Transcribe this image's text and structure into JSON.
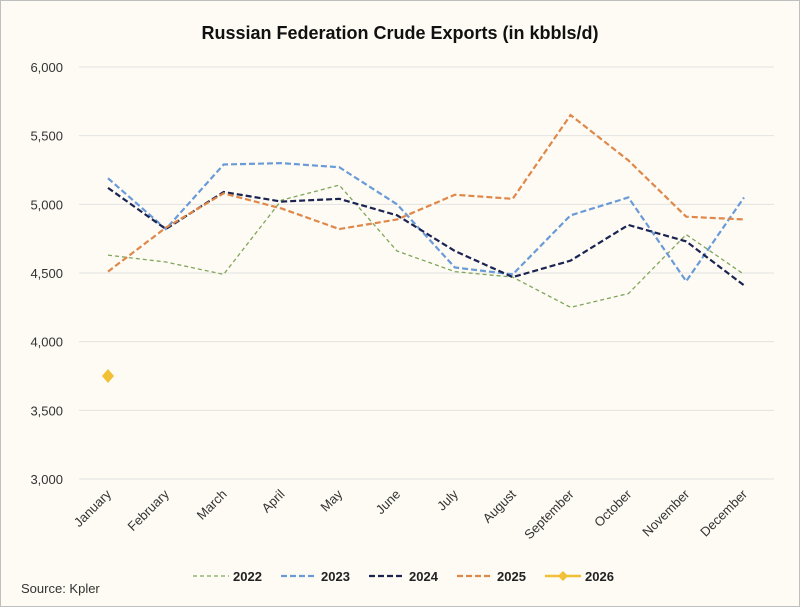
{
  "chart_data": {
    "type": "line",
    "title": "Russian Federation Crude Exports (in kbbls/d)",
    "categories": [
      "January",
      "February",
      "March",
      "April",
      "May",
      "June",
      "July",
      "August",
      "September",
      "October",
      "November",
      "December"
    ],
    "ylim": [
      3000,
      6000
    ],
    "yticks": [
      3000,
      3500,
      4000,
      4500,
      5000,
      5500,
      6000
    ],
    "ytick_labels": [
      "3,000",
      "3,500",
      "4,000",
      "4,500",
      "5,000",
      "5,500",
      "6,000"
    ],
    "grid": true,
    "legend_position": "bottom",
    "series": [
      {
        "name": "2022",
        "color": "#7fa65a",
        "style": "dashed",
        "values": [
          4630,
          4580,
          4490,
          5030,
          5140,
          4660,
          4510,
          4470,
          4250,
          4350,
          4780,
          4490
        ]
      },
      {
        "name": "2023",
        "color": "#6a9bd8",
        "style": "dashed",
        "values": [
          5190,
          4820,
          5290,
          5300,
          5270,
          5000,
          4540,
          4490,
          4920,
          5050,
          4440,
          5050
        ]
      },
      {
        "name": "2024",
        "color": "#1a2352",
        "style": "dashed",
        "values": [
          5120,
          4820,
          5090,
          5020,
          5040,
          4920,
          4660,
          4470,
          4590,
          4850,
          4730,
          4410
        ]
      },
      {
        "name": "2025",
        "color": "#e0874a",
        "style": "dashed",
        "values": [
          4510,
          4830,
          5080,
          4970,
          4820,
          4890,
          5070,
          5040,
          5650,
          5320,
          4910,
          4890
        ]
      },
      {
        "name": "2026",
        "color": "#f2c037",
        "style": "solid-marker",
        "values": [
          3750,
          null,
          null,
          null,
          null,
          null,
          null,
          null,
          null,
          null,
          null,
          null
        ]
      }
    ]
  },
  "source": "Source: Kpler"
}
